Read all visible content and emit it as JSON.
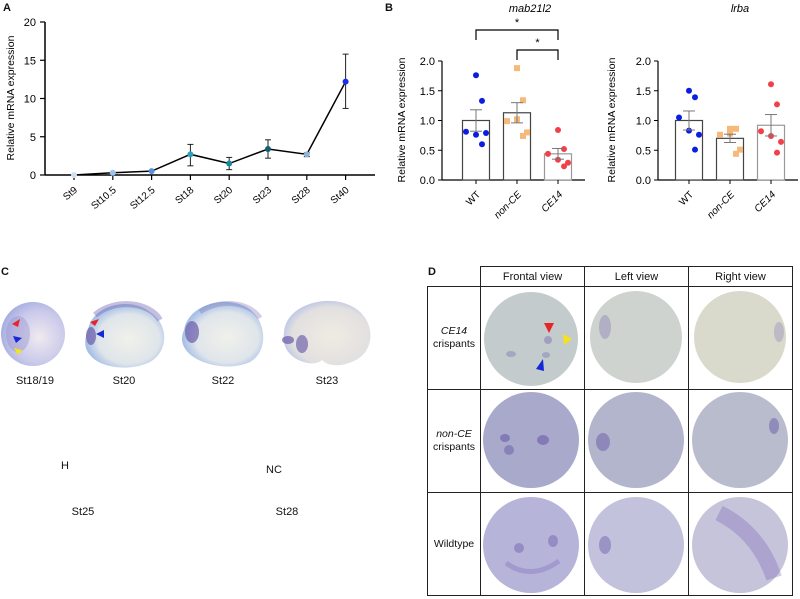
{
  "panels": {
    "A": {
      "label": "A"
    },
    "B": {
      "label": "B"
    },
    "C": {
      "label": "C"
    },
    "D": {
      "label": "D"
    }
  },
  "chart_data": [
    {
      "id": "A",
      "type": "line",
      "title": "",
      "xlabel": "",
      "ylabel": "Relative mRNA expression",
      "ylim": [
        0,
        20
      ],
      "yticks": [
        "0",
        "5",
        "10",
        "15",
        "20"
      ],
      "categories": [
        "St9",
        "St10.5",
        "St12.5",
        "St18",
        "St20",
        "St23",
        "St28",
        "St40"
      ],
      "values": [
        0.0,
        0.3,
        0.5,
        2.7,
        1.5,
        3.4,
        2.7,
        12.2
      ],
      "error_upper": [
        0.0,
        0.4,
        0.6,
        4.0,
        2.3,
        4.6,
        2.9,
        15.8
      ],
      "error_lower": [
        0.0,
        0.2,
        0.4,
        1.2,
        0.7,
        2.2,
        2.4,
        8.7
      ],
      "marker_colors": [
        "#cfe0f5",
        "#9cc2ee",
        "#5b8fdc",
        "#2aa0c0",
        "#168a9c",
        "#0f5e72",
        "#8fb3dc",
        "#1a2ef0"
      ],
      "grid": false
    },
    {
      "id": "B-mab21l2",
      "type": "bar",
      "title": "mab21l2",
      "ylabel": "Relative mRNA expression",
      "ylim": [
        0,
        2.0
      ],
      "yticks": [
        "0.0",
        "0.5",
        "1.0",
        "1.5",
        "2.0"
      ],
      "categories": [
        "WT",
        "non-CE",
        "CE14"
      ],
      "values": [
        1.0,
        1.13,
        0.44
      ],
      "sem": [
        0.18,
        0.17,
        0.09
      ],
      "points": [
        [
          1.76,
          1.33,
          0.81,
          0.76,
          0.79,
          0.6
        ],
        [
          1.88,
          1.34,
          0.99,
          1.02,
          0.8,
          0.74
        ],
        [
          0.84,
          0.52,
          0.44,
          0.34,
          0.29,
          0.23
        ]
      ],
      "point_colors": [
        "#0b1de0",
        "#f7b97a",
        "#f2404a"
      ],
      "point_shapes": [
        "circle",
        "square",
        "circle"
      ],
      "significance": [
        {
          "from": "WT",
          "to": "CE14",
          "label": "*"
        },
        {
          "from": "non-CE",
          "to": "CE14",
          "label": "*"
        }
      ]
    },
    {
      "id": "B-lrba",
      "type": "bar",
      "title": "lrba",
      "ylabel": "Relative mRNA expression",
      "ylim": [
        0,
        2.0
      ],
      "yticks": [
        "0.0",
        "0.5",
        "1.0",
        "1.5",
        "2.0"
      ],
      "categories": [
        "WT",
        "non-CE",
        "CE14"
      ],
      "values": [
        1.0,
        0.7,
        0.92
      ],
      "sem": [
        0.16,
        0.07,
        0.18
      ],
      "points": [
        [
          1.5,
          1.39,
          1.05,
          0.83,
          0.76,
          0.51
        ],
        [
          0.86,
          0.86,
          0.76,
          0.78,
          0.51,
          0.44
        ],
        [
          1.61,
          1.27,
          0.82,
          0.74,
          0.64,
          0.46
        ]
      ],
      "point_colors": [
        "#0b1de0",
        "#f7b97a",
        "#f2404a"
      ],
      "point_shapes": [
        "circle",
        "square",
        "circle"
      ],
      "significance": []
    }
  ],
  "panelC": {
    "stages_row1": [
      "St18/19",
      "St20",
      "St22",
      "St23"
    ],
    "stages_row2": [
      "St25",
      "St28"
    ],
    "annotations": {
      "H": "H",
      "NC": "NC"
    }
  },
  "panelD": {
    "columns": [
      "Frontal view",
      "Left view",
      "Right view"
    ],
    "rows": [
      {
        "line1": "CE14",
        "line1_italic": true,
        "line2": "crispants"
      },
      {
        "line1": "non-CE",
        "line1_italic": true,
        "line2": "crispants"
      },
      {
        "line1": "Wildtype",
        "line1_italic": false,
        "line2": ""
      }
    ]
  },
  "colors": {
    "arrow_red": "#e8242a",
    "arrow_blue": "#1428d8",
    "arrow_yellow": "#f4e21a",
    "embryo_blue": "#8fb2e8",
    "stain_purple": "#6a5aa8"
  }
}
